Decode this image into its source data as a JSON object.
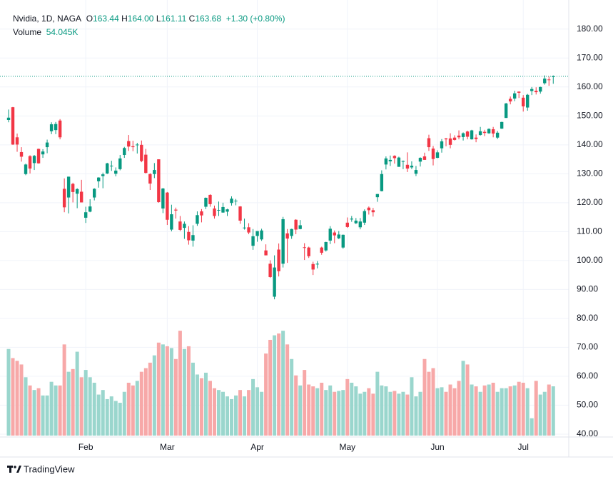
{
  "chart_data": {
    "type": "candlestick",
    "legend": {
      "title": "Nvidia, 1D, NAGA",
      "items": [
        {
          "label": "O",
          "value": "163.44"
        },
        {
          "label": "H",
          "value": "164.00"
        },
        {
          "label": "L",
          "value": "161.11"
        },
        {
          "label": "C",
          "value": "163.68"
        }
      ],
      "change": "+1.30 (+0.80%)",
      "volume_label": "Volume",
      "volume_value": "54.045K"
    },
    "up_color": "#089981",
    "down_color": "#f23645",
    "volume_up_color": "#9ad6cd",
    "volume_down_color": "#f7a8a8",
    "last_price_color": "#089981",
    "grid": true,
    "ylim": [
      39,
      187.6
    ],
    "yticks": [
      {
        "value": 40,
        "label": "40.00"
      },
      {
        "value": 50,
        "label": "50.00"
      },
      {
        "value": 60,
        "label": "60.00"
      },
      {
        "value": 70,
        "label": "70.00"
      },
      {
        "value": 80,
        "label": "80.00"
      },
      {
        "value": 90,
        "label": "90.00"
      },
      {
        "value": 100,
        "label": "100.00"
      },
      {
        "value": 110,
        "label": "110.00"
      },
      {
        "value": 120,
        "label": "120.00"
      },
      {
        "value": 130,
        "label": "130.00"
      },
      {
        "value": 140,
        "label": "140.00"
      },
      {
        "value": 150,
        "label": "150.00"
      },
      {
        "value": 160,
        "label": "160.00"
      },
      {
        "value": 170,
        "label": "170.00"
      },
      {
        "value": 180,
        "label": "180.00"
      }
    ],
    "volume_ylim": [
      0,
      470
    ],
    "categories": [
      null,
      null,
      null,
      null,
      null,
      null,
      null,
      null,
      null,
      null,
      null,
      null,
      null,
      null,
      null,
      null,
      null,
      null,
      "Feb",
      null,
      null,
      null,
      null,
      null,
      null,
      null,
      null,
      null,
      null,
      null,
      null,
      null,
      null,
      null,
      null,
      null,
      null,
      "Mar",
      null,
      null,
      null,
      null,
      null,
      null,
      null,
      null,
      null,
      null,
      null,
      null,
      null,
      null,
      null,
      null,
      null,
      null,
      null,
      null,
      "Apr",
      null,
      null,
      null,
      null,
      null,
      null,
      null,
      null,
      null,
      null,
      null,
      null,
      null,
      null,
      null,
      null,
      null,
      null,
      null,
      null,
      "May",
      null,
      null,
      null,
      null,
      null,
      null,
      null,
      null,
      null,
      null,
      null,
      null,
      null,
      null,
      null,
      null,
      null,
      null,
      null,
      null,
      "Jun",
      null,
      null,
      null,
      null,
      null,
      null,
      null,
      null,
      null,
      null,
      null,
      null,
      null,
      null,
      null,
      null,
      null,
      null,
      null,
      "Jul",
      null,
      null,
      null,
      null,
      null,
      null,
      null
    ],
    "ohlc": [
      [
        148.6,
        152.2,
        147.8,
        149.4
      ],
      [
        153.0,
        153.1,
        140.0,
        140.1
      ],
      [
        142.6,
        143.9,
        137.6,
        140.1
      ],
      [
        137.5,
        139.2,
        134.2,
        135.9
      ],
      [
        129.9,
        133.5,
        129.5,
        133.2
      ],
      [
        136.1,
        136.4,
        130.1,
        131.8
      ],
      [
        133.7,
        136.5,
        131.3,
        136.2
      ],
      [
        138.6,
        138.7,
        133.5,
        133.6
      ],
      [
        136.7,
        138.5,
        135.5,
        137.7
      ],
      [
        139.2,
        141.8,
        137.1,
        140.8
      ],
      [
        144.7,
        147.8,
        143.7,
        147.1
      ],
      [
        145.1,
        147.9,
        143.7,
        147.2
      ],
      [
        148.4,
        148.9,
        141.9,
        142.6
      ],
      [
        124.8,
        128.4,
        116.7,
        118.4
      ],
      [
        121.8,
        129.0,
        116.3,
        129.0
      ],
      [
        126.5,
        126.9,
        120.1,
        123.7
      ],
      [
        123.1,
        125.0,
        118.1,
        124.7
      ],
      [
        123.8,
        127.9,
        120.1,
        120.1
      ],
      [
        114.8,
        118.6,
        113.0,
        116.7
      ],
      [
        116.9,
        121.2,
        116.7,
        118.7
      ],
      [
        121.8,
        125.0,
        120.8,
        124.8
      ],
      [
        127.4,
        128.8,
        125.2,
        128.7
      ],
      [
        129.2,
        130.4,
        125.0,
        129.8
      ],
      [
        130.1,
        133.8,
        129.9,
        133.6
      ],
      [
        132.6,
        134.5,
        131.0,
        132.8
      ],
      [
        130.0,
        132.2,
        129.1,
        131.1
      ],
      [
        131.6,
        136.5,
        131.2,
        135.3
      ],
      [
        136.5,
        139.3,
        135.5,
        138.9
      ],
      [
        141.3,
        143.4,
        137.9,
        139.4
      ],
      [
        139.5,
        141.4,
        137.8,
        139.2
      ],
      [
        140.0,
        140.7,
        137.0,
        140.1
      ],
      [
        140.0,
        141.5,
        134.0,
        134.4
      ],
      [
        136.6,
        138.6,
        130.1,
        130.3
      ],
      [
        129.9,
        130.2,
        124.4,
        126.6
      ],
      [
        129.9,
        133.7,
        128.5,
        131.3
      ],
      [
        135.0,
        135.0,
        120.0,
        120.2
      ],
      [
        118.0,
        125.1,
        116.4,
        124.9
      ],
      [
        123.5,
        123.7,
        112.3,
        114.1
      ],
      [
        110.7,
        119.3,
        110.1,
        116.0
      ],
      [
        117.6,
        118.3,
        114.5,
        117.3
      ],
      [
        113.5,
        115.4,
        110.2,
        110.6
      ],
      [
        111.3,
        113.5,
        107.5,
        112.7
      ],
      [
        109.9,
        111.9,
        105.5,
        107.0
      ],
      [
        106.9,
        112.2,
        104.8,
        108.8
      ],
      [
        112.7,
        117.0,
        112.0,
        115.7
      ],
      [
        117.0,
        117.8,
        113.2,
        115.6
      ],
      [
        118.6,
        121.8,
        117.8,
        121.7
      ],
      [
        122.7,
        122.9,
        118.6,
        119.5
      ],
      [
        118.0,
        119.0,
        114.5,
        115.4
      ],
      [
        117.3,
        120.4,
        115.4,
        117.5
      ],
      [
        116.6,
        120.0,
        116.5,
        118.5
      ],
      [
        116.9,
        117.9,
        115.4,
        117.7
      ],
      [
        119.9,
        122.2,
        119.0,
        121.4
      ],
      [
        120.6,
        121.3,
        119.1,
        120.7
      ],
      [
        118.7,
        118.8,
        112.7,
        113.8
      ],
      [
        111.4,
        114.5,
        110.7,
        111.4
      ],
      [
        111.5,
        112.9,
        109.1,
        109.7
      ],
      [
        105.1,
        110.9,
        103.7,
        108.4
      ],
      [
        108.5,
        110.2,
        106.5,
        110.2
      ],
      [
        107.3,
        111.0,
        106.8,
        110.4
      ],
      [
        103.5,
        105.6,
        101.8,
        101.8
      ],
      [
        98.9,
        100.1,
        94.0,
        94.3
      ],
      [
        87.5,
        101.8,
        86.6,
        97.6
      ],
      [
        103.8,
        105.9,
        94.5,
        96.3
      ],
      [
        98.9,
        115.1,
        97.6,
        114.3
      ],
      [
        109.4,
        110.9,
        99.2,
        107.6
      ],
      [
        108.5,
        111.0,
        107.5,
        110.9
      ],
      [
        114.1,
        114.3,
        109.1,
        110.7
      ],
      [
        110.9,
        114.0,
        110.8,
        112.2
      ],
      [
        104.6,
        106.0,
        100.2,
        104.5
      ],
      [
        104.5,
        104.8,
        100.9,
        101.5
      ],
      [
        98.8,
        99.6,
        95.0,
        96.9
      ],
      [
        98.8,
        99.8,
        97.3,
        98.9
      ],
      [
        104.5,
        104.8,
        102.0,
        102.7
      ],
      [
        103.5,
        106.5,
        103.1,
        106.4
      ],
      [
        106.9,
        111.9,
        105.7,
        111.0
      ],
      [
        109.7,
        110.4,
        106.0,
        108.7
      ],
      [
        107.7,
        110.2,
        107.4,
        109.0
      ],
      [
        104.5,
        109.0,
        104.1,
        108.9
      ],
      [
        113.1,
        114.9,
        111.3,
        111.6
      ],
      [
        114.2,
        115.4,
        113.4,
        114.5
      ],
      [
        112.9,
        114.7,
        112.6,
        113.8
      ],
      [
        111.5,
        114.7,
        110.8,
        113.5
      ],
      [
        113.1,
        117.7,
        112.3,
        117.1
      ],
      [
        118.3,
        118.7,
        115.9,
        117.4
      ],
      [
        117.4,
        118.2,
        115.2,
        116.7
      ],
      [
        121.9,
        123.0,
        120.3,
        123.0
      ],
      [
        124.0,
        131.2,
        123.9,
        129.9
      ],
      [
        133.2,
        136.0,
        131.5,
        135.3
      ],
      [
        134.3,
        136.3,
        132.7,
        134.8
      ],
      [
        136.2,
        136.4,
        133.5,
        135.4
      ],
      [
        132.4,
        135.9,
        132.4,
        135.6
      ],
      [
        134.3,
        134.6,
        131.6,
        134.4
      ],
      [
        133.1,
        137.4,
        130.6,
        131.8
      ],
      [
        132.2,
        134.3,
        131.6,
        132.8
      ],
      [
        130.0,
        132.7,
        129.2,
        131.3
      ],
      [
        134.2,
        135.7,
        132.5,
        135.5
      ],
      [
        136.0,
        137.3,
        134.8,
        134.8
      ],
      [
        142.3,
        143.5,
        137.9,
        139.2
      ],
      [
        138.7,
        139.6,
        132.9,
        135.1
      ],
      [
        135.5,
        138.1,
        135.4,
        137.4
      ],
      [
        138.8,
        142.0,
        137.3,
        141.2
      ],
      [
        142.2,
        142.4,
        139.5,
        141.9
      ],
      [
        142.2,
        144.0,
        138.8,
        140.0
      ],
      [
        142.5,
        143.3,
        141.5,
        141.7
      ],
      [
        143.2,
        145.0,
        141.9,
        142.6
      ],
      [
        142.7,
        144.3,
        141.5,
        144.0
      ],
      [
        144.6,
        144.9,
        141.9,
        142.8
      ],
      [
        141.9,
        145.2,
        141.8,
        145.0
      ],
      [
        142.5,
        143.6,
        140.9,
        142.0
      ],
      [
        143.4,
        146.2,
        143.2,
        144.7
      ],
      [
        144.5,
        145.2,
        143.0,
        144.1
      ],
      [
        144.0,
        145.7,
        143.8,
        145.5
      ],
      [
        145.4,
        146.2,
        142.6,
        143.9
      ],
      [
        142.5,
        144.8,
        142.0,
        144.2
      ],
      [
        145.6,
        148.0,
        145.5,
        147.9
      ],
      [
        149.3,
        154.5,
        149.3,
        154.3
      ],
      [
        155.9,
        156.7,
        154.0,
        155.0
      ],
      [
        156.0,
        158.7,
        155.1,
        157.8
      ],
      [
        158.4,
        158.5,
        156.2,
        158.0
      ],
      [
        156.3,
        157.2,
        151.5,
        153.3
      ],
      [
        152.9,
        157.6,
        151.8,
        157.3
      ],
      [
        158.6,
        160.0,
        157.2,
        159.3
      ],
      [
        158.7,
        159.9,
        157.4,
        158.2
      ],
      [
        158.4,
        160.1,
        157.7,
        160.0
      ],
      [
        161.3,
        164.0,
        160.8,
        162.9
      ],
      [
        162.6,
        163.6,
        160.4,
        162.38
      ],
      [
        163.44,
        164.0,
        161.11,
        163.68
      ]
    ],
    "volume": [
      95,
      85,
      82,
      78,
      64,
      55,
      50,
      52,
      44,
      44,
      59,
      55,
      55,
      100,
      70,
      73,
      92,
      64,
      72,
      64,
      58,
      45,
      50,
      40,
      43,
      38,
      36,
      48,
      58,
      55,
      60,
      70,
      74,
      80,
      88,
      102,
      100,
      98,
      96,
      84,
      115,
      95,
      98,
      80,
      67,
      63,
      69,
      60,
      52,
      50,
      48,
      43,
      40,
      44,
      50,
      43,
      50,
      62,
      53,
      48,
      90,
      105,
      110,
      112,
      115,
      100,
      84,
      66,
      55,
      72,
      56,
      54,
      52,
      58,
      50,
      55,
      48,
      49,
      50,
      62,
      58,
      54,
      46,
      48,
      52,
      46,
      70,
      55,
      54,
      48,
      49,
      46,
      48,
      45,
      64,
      43,
      48,
      84,
      70,
      74,
      52,
      53,
      48,
      56,
      52,
      60,
      82,
      78,
      56,
      54,
      48,
      55,
      56,
      58,
      48,
      52,
      52,
      54,
      55,
      59,
      58,
      52,
      19,
      60,
      45,
      48,
      56,
      54.045
    ]
  },
  "footer": {
    "brand": "TradingView"
  }
}
